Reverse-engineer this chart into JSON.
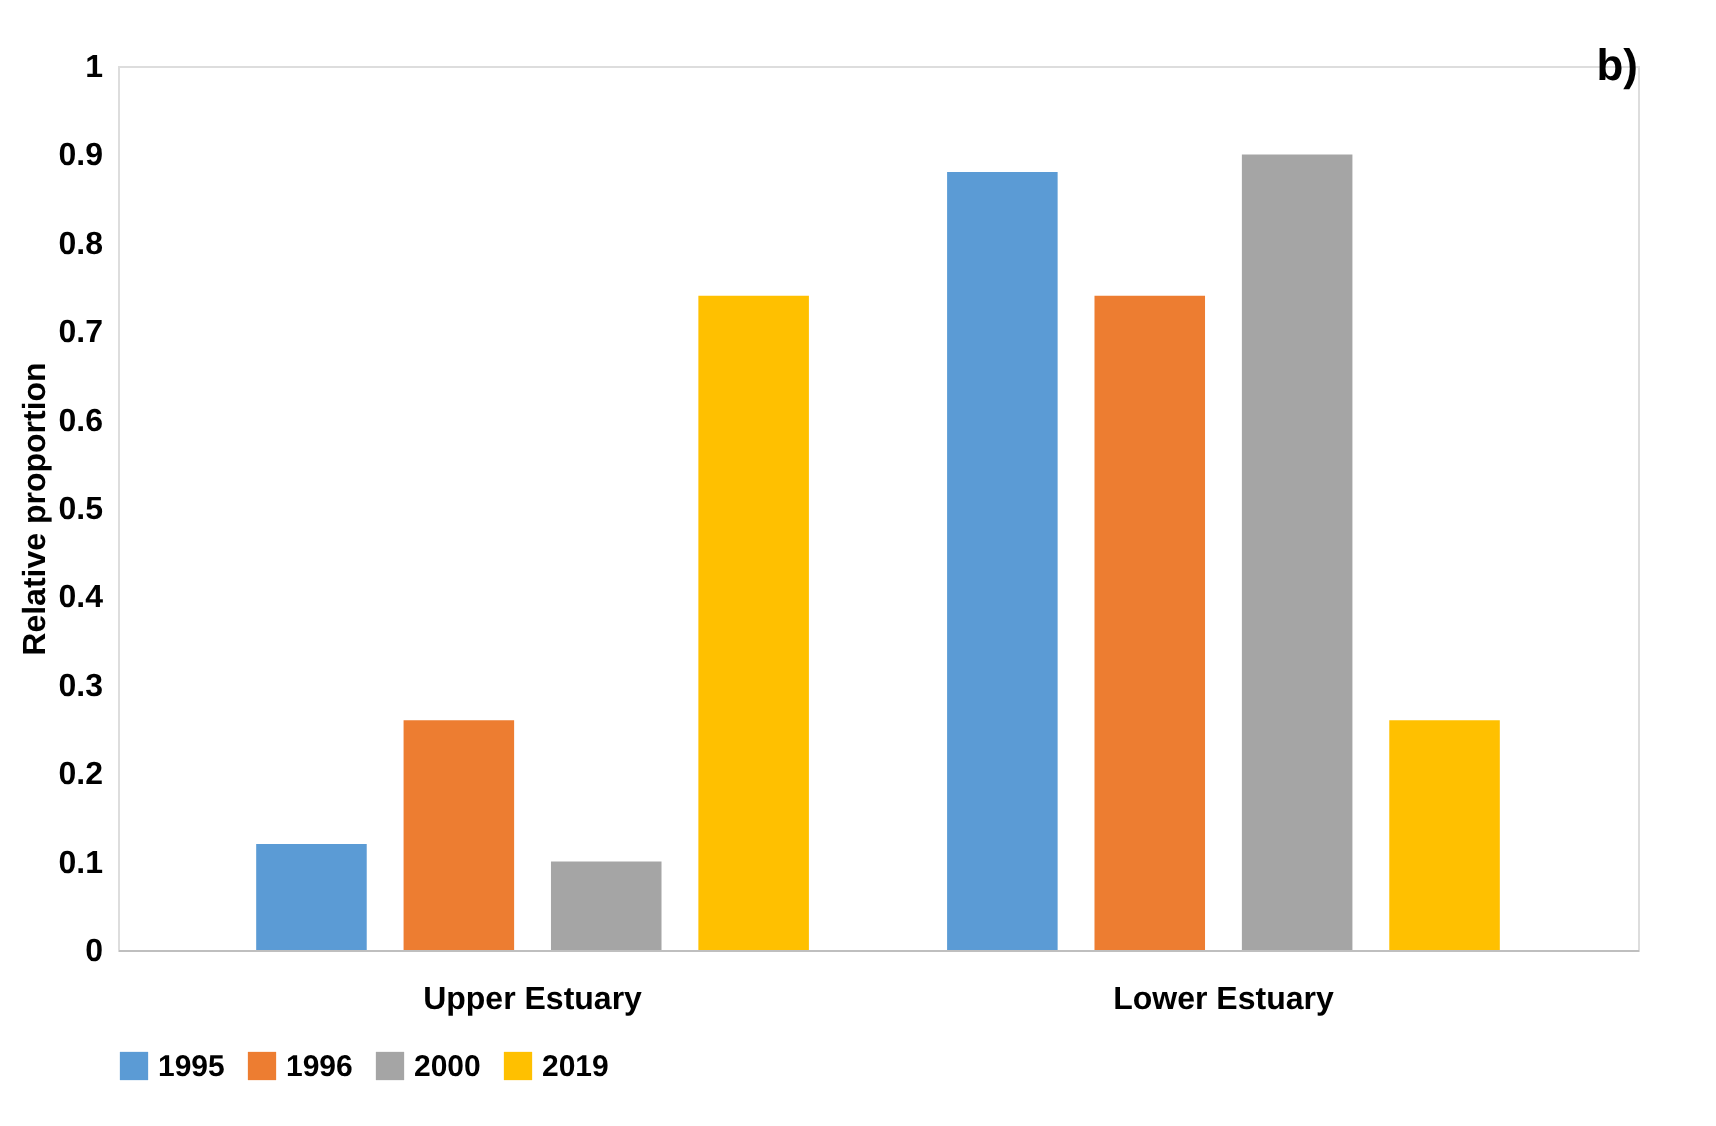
{
  "chart_data": {
    "type": "bar",
    "ylabel": "Relative proportion",
    "categories": [
      "Upper Estuary",
      "Lower Estuary"
    ],
    "series": [
      {
        "name": "1995",
        "color": "#5b9bd5",
        "values": [
          0.12,
          0.88
        ]
      },
      {
        "name": "1996",
        "color": "#ed7d31",
        "values": [
          0.26,
          0.74
        ]
      },
      {
        "name": "2000",
        "color": "#a5a5a5",
        "values": [
          0.1,
          0.9
        ]
      },
      {
        "name": "2019",
        "color": "#ffc000",
        "values": [
          0.74,
          0.26
        ]
      }
    ],
    "ylim": [
      0,
      1
    ],
    "yticks": [
      0,
      0.1,
      0.2,
      0.3,
      0.4,
      0.5,
      0.6,
      0.7,
      0.8,
      0.9,
      1
    ],
    "grid": false,
    "legend": "bottom",
    "annotations": [
      "b)"
    ]
  }
}
